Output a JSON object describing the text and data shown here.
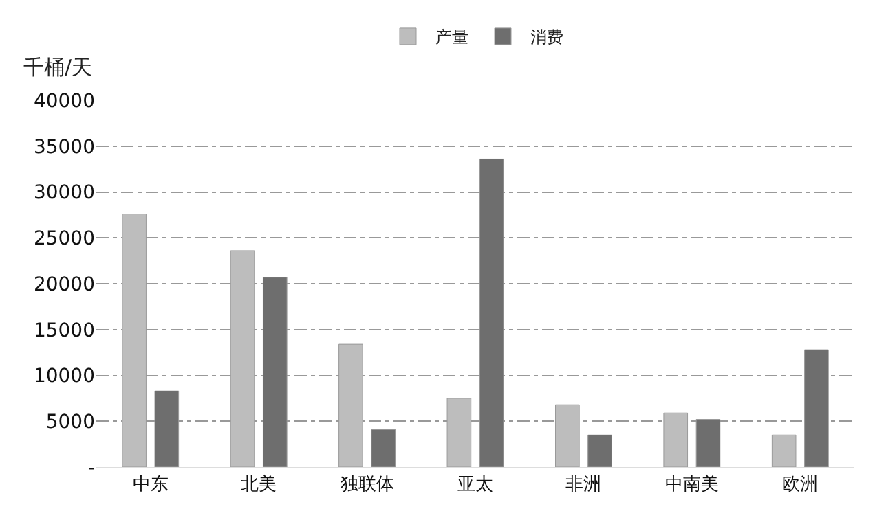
{
  "chart_data": {
    "type": "bar",
    "ylabel": "千桶/天",
    "categories": [
      "中东",
      "北美",
      "独联体",
      "亚太",
      "非洲",
      "中南美",
      "欧洲"
    ],
    "series": [
      {
        "name": "产量",
        "color": "#bdbdbd",
        "values": [
          27600,
          23600,
          13400,
          7500,
          6800,
          5900,
          3500
        ]
      },
      {
        "name": "消费",
        "color": "#6e6e6e",
        "values": [
          8300,
          20700,
          4100,
          33600,
          3500,
          5200,
          12800
        ]
      }
    ],
    "ylim": [
      0,
      40000
    ],
    "yticks": [
      {
        "value": 0,
        "label": "-"
      },
      5000,
      10000,
      15000,
      20000,
      25000,
      30000,
      35000,
      40000
    ],
    "grid": "y",
    "line_style": "dashdot",
    "legend": "top"
  }
}
